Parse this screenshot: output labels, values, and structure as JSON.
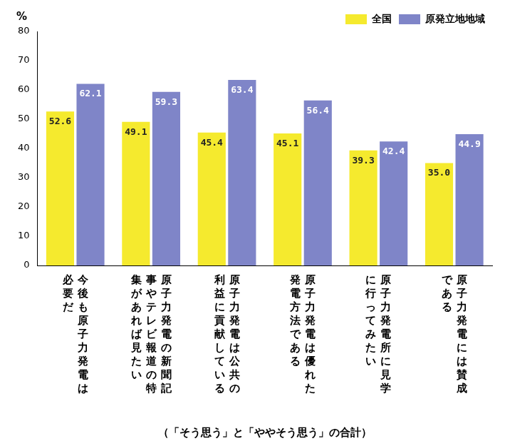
{
  "chart_data": {
    "type": "bar",
    "y_label": "%",
    "note": "（「そう思う」と「ややそう思う」の合計）",
    "categories": [
      "今後も原子力発電は必要だ",
      "原子力発電の新聞記事やテレビ報道の特集があれば見たい",
      "原子力発電は公共の利益に貢献している",
      "原子力発電は優れた発電方法である",
      "原子力発電所に見学に行ってみたい",
      "原子力発電には賛成である"
    ],
    "series": [
      {
        "name": "全国",
        "color": "#f5ea2e",
        "values": [
          52.6,
          49.1,
          45.4,
          45.1,
          39.3,
          35.0
        ],
        "value_labels": [
          "52.6",
          "49.1",
          "45.4",
          "45.1",
          "39.3",
          "35.0"
        ]
      },
      {
        "name": "原発立地地域",
        "color": "#7f85c8",
        "values": [
          62.1,
          59.3,
          63.4,
          56.4,
          42.4,
          44.9
        ],
        "value_labels": [
          "62.1",
          "59.3",
          "63.4",
          "56.4",
          "42.4",
          "44.9"
        ]
      }
    ],
    "ylim": [
      0,
      80
    ],
    "yticks": [
      0,
      10,
      20,
      30,
      40,
      50,
      60,
      70,
      80
    ],
    "grid": false,
    "legend": "top-right",
    "data_labels": true
  }
}
